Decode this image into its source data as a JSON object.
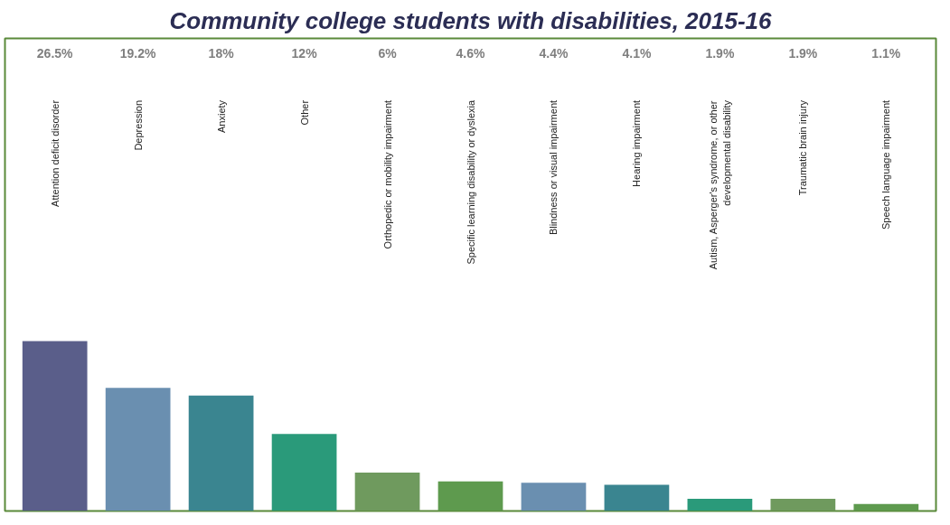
{
  "chart_data": {
    "type": "bar",
    "title": "Community college students with disabilities, 2015-16",
    "categories": [
      "Attention deficit disorder",
      "Depression",
      "Anxiety",
      "Other",
      "Orthopedic or mobility impairment",
      "Specific learning disability or dyslexia",
      "Blindness or visual impairment",
      "Hearing impairment",
      "Autism, Asperger's syndrome, or other developmental disability",
      "Traumatic brain injury",
      "Speech language impairment"
    ],
    "values": [
      26.5,
      19.2,
      18,
      12,
      6,
      4.6,
      4.4,
      4.1,
      1.9,
      1.9,
      1.1
    ],
    "value_labels": [
      "26.5%",
      "19.2%",
      "18%",
      "12%",
      "6%",
      "4.6%",
      "4.4%",
      "4.1%",
      "1.9%",
      "1.9%",
      "1.1%"
    ],
    "colors": [
      "#5a5e8a",
      "#6a8fb0",
      "#3a8590",
      "#2a9a7a",
      "#6f9a5e",
      "#5e9a4e",
      "#6a8fb0",
      "#3a8590",
      "#2a9a7a",
      "#6f9a5e",
      "#5e9a4e"
    ],
    "grid": false
  }
}
